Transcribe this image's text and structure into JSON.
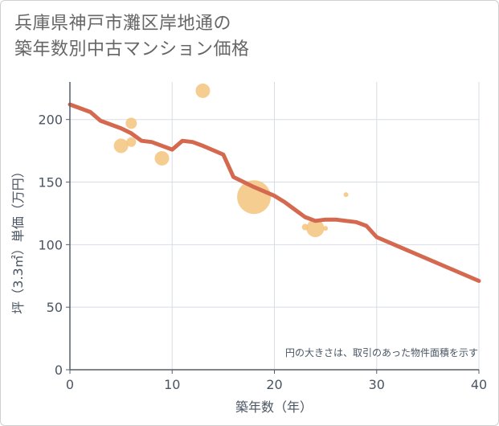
{
  "title_lines": [
    "兵庫県神戸市灘区岸地通の",
    "築年数別中古マンション価格"
  ],
  "chart_data": {
    "type": "scatter+line",
    "xlabel": "築年数（年）",
    "ylabel": "坪（3.3㎡）単価（万円）",
    "xlim": [
      0,
      40
    ],
    "ylim": [
      0,
      230
    ],
    "xticks": [
      0,
      10,
      20,
      30,
      40
    ],
    "yticks": [
      0,
      50,
      100,
      150,
      200
    ],
    "grid": true,
    "annotation": "円の大きさは、取引のあった物件面積を示す",
    "colors": {
      "trend": "#d4694f",
      "bubble": "#f5c47c",
      "grid": "#d7dde6",
      "axis": "#555e6b"
    },
    "trend": {
      "x": [
        0,
        2,
        3,
        5,
        6,
        7,
        8,
        10,
        11,
        12,
        13,
        15,
        16,
        18,
        20,
        21,
        22,
        23,
        24,
        25,
        26,
        27,
        28,
        29,
        30,
        40
      ],
      "y": [
        212,
        206,
        199,
        193,
        189,
        183,
        182,
        176,
        183,
        182,
        179,
        172,
        154,
        146,
        139,
        134,
        128,
        122,
        119,
        120,
        120,
        119,
        118,
        115,
        106,
        71
      ]
    },
    "bubbles": [
      {
        "x": 5,
        "y": 179,
        "size": 9
      },
      {
        "x": 6,
        "y": 197,
        "size": 7
      },
      {
        "x": 6,
        "y": 182,
        "size": 6
      },
      {
        "x": 9,
        "y": 169,
        "size": 9
      },
      {
        "x": 13,
        "y": 223,
        "size": 9
      },
      {
        "x": 18,
        "y": 138,
        "size": 21
      },
      {
        "x": 23,
        "y": 114,
        "size": 4
      },
      {
        "x": 24,
        "y": 113,
        "size": 11
      },
      {
        "x": 25,
        "y": 113,
        "size": 3
      },
      {
        "x": 27,
        "y": 140,
        "size": 3
      }
    ]
  }
}
